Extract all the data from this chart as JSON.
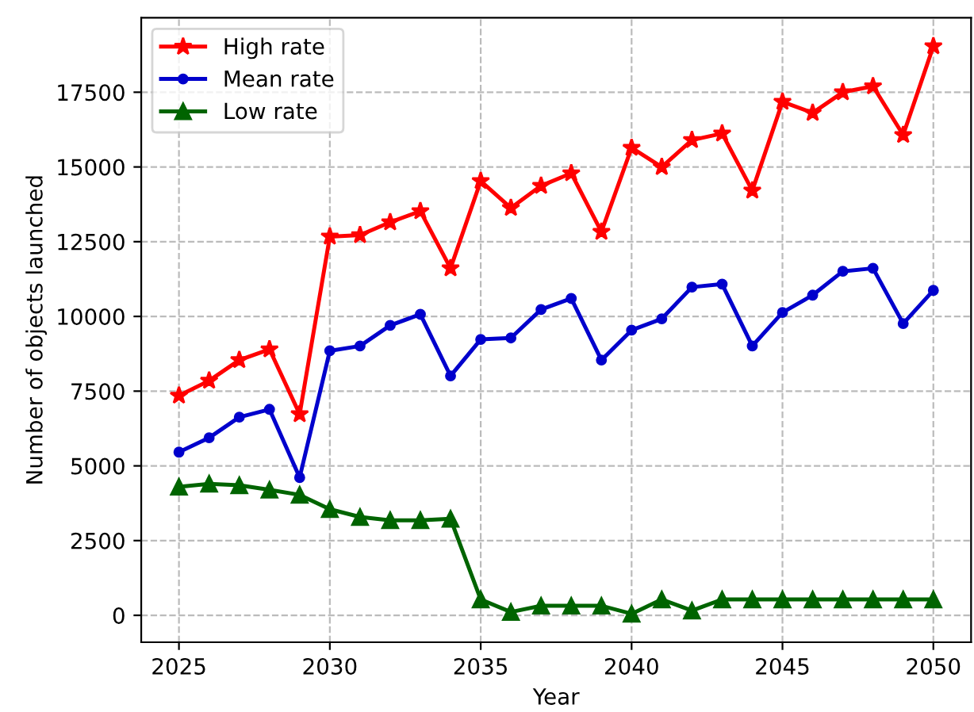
{
  "chart_data": {
    "type": "line",
    "xlabel": "Year",
    "ylabel": "Number of objects launched",
    "x": [
      2025,
      2026,
      2027,
      2028,
      2029,
      2030,
      2031,
      2032,
      2033,
      2034,
      2035,
      2036,
      2037,
      2038,
      2039,
      2040,
      2041,
      2042,
      2043,
      2044,
      2045,
      2046,
      2047,
      2048,
      2049,
      2050
    ],
    "series": [
      {
        "name": "High rate",
        "color": "#ff0000",
        "marker": "star",
        "values": [
          7350,
          7850,
          8540,
          8900,
          6730,
          12670,
          12720,
          13150,
          13520,
          11610,
          14530,
          13630,
          14370,
          14790,
          12830,
          15640,
          15000,
          15900,
          16120,
          14210,
          17180,
          16810,
          17500,
          17700,
          16070,
          19040
        ]
      },
      {
        "name": "Mean rate",
        "color": "#0000cc",
        "marker": "circle",
        "values": [
          5460,
          5940,
          6630,
          6890,
          4610,
          8850,
          9010,
          9700,
          10070,
          8010,
          9230,
          9280,
          10230,
          10600,
          8540,
          9540,
          9920,
          10980,
          11080,
          9010,
          10130,
          10710,
          11510,
          11610,
          9760,
          10870
        ]
      },
      {
        "name": "Low rate",
        "color": "#006400",
        "marker": "triangle",
        "values": [
          4300,
          4400,
          4350,
          4200,
          4030,
          3550,
          3290,
          3180,
          3180,
          3230,
          530,
          110,
          320,
          320,
          320,
          50,
          530,
          160,
          530,
          530,
          530,
          530,
          530,
          530,
          530,
          530
        ]
      }
    ],
    "xlim": [
      2023.75,
      2051.25
    ],
    "ylim": [
      -900,
      19990
    ],
    "xticks": [
      2025,
      2030,
      2035,
      2040,
      2045,
      2050
    ],
    "yticks": [
      0,
      2500,
      5000,
      7500,
      10000,
      12500,
      15000,
      17500
    ],
    "grid": true,
    "legend": "top left"
  }
}
